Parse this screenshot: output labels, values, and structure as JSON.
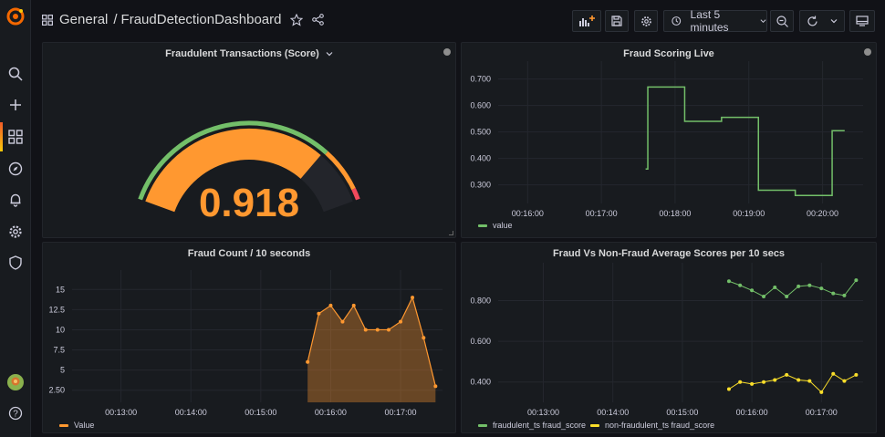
{
  "breadcrumb": {
    "folder": "General",
    "separator": "/",
    "dashboard": "FraudDetectionDashboard"
  },
  "toolbar": {
    "time_range": "Last 5 minutes"
  },
  "colors": {
    "orange": "#ff9830",
    "green": "#73bf69",
    "yellow": "#fade2a",
    "red": "#f2495c"
  },
  "panels": {
    "gauge": {
      "title": "Fraudulent Transactions (Score)",
      "value": "0.918"
    },
    "live": {
      "title": "Fraud Scoring Live",
      "legend": "value"
    },
    "count": {
      "title": "Fraud Count / 10 seconds",
      "legend": "Value"
    },
    "avg": {
      "title": "Fraud Vs Non-Fraud Average Scores per 10 secs",
      "legend_a": "fraudulent_ts fraud_score",
      "legend_b": "non-fraudulent_ts fraud_score"
    }
  },
  "chart_data": [
    {
      "type": "gauge",
      "title": "Fraudulent Transactions (Score)",
      "value": 0.918,
      "min": 0,
      "max": 1,
      "thresholds": [
        {
          "color": "green",
          "from": 0
        },
        {
          "color": "orange",
          "from": 0.8
        },
        {
          "color": "red",
          "from": 0.96
        }
      ]
    },
    {
      "type": "line",
      "title": "Fraud Scoring Live",
      "x_ticks": [
        "00:16:00",
        "00:17:00",
        "00:18:00",
        "00:19:00",
        "00:20:00"
      ],
      "y_ticks": [
        "0.700",
        "0.600",
        "0.500",
        "0.400",
        "0.300"
      ],
      "ylim": [
        0.23,
        0.74
      ],
      "xlim_minutes": [
        15.6,
        20.55
      ],
      "series": [
        {
          "name": "value",
          "x_minutes": [
            17.6,
            17.6,
            17.63,
            17.63,
            18.13,
            18.13,
            18.63,
            18.63,
            19.13,
            19.13,
            19.63,
            19.63,
            20.13,
            20.13,
            20.3
          ],
          "values": [
            0.36,
            0.36,
            0.36,
            0.67,
            0.67,
            0.54,
            0.54,
            0.555,
            0.555,
            0.28,
            0.28,
            0.26,
            0.26,
            0.505,
            0.505
          ]
        }
      ]
    },
    {
      "type": "area",
      "title": "Fraud Count / 10 seconds",
      "x_ticks": [
        "00:13:00",
        "00:14:00",
        "00:15:00",
        "00:16:00",
        "00:17:00"
      ],
      "y_ticks": [
        "15",
        "12.5",
        "10",
        "7.5",
        "5",
        "2.50"
      ],
      "ylim": [
        1,
        16.5
      ],
      "xlim_minutes": [
        12.3,
        17.6
      ],
      "series": [
        {
          "name": "Value",
          "x_minutes": [
            15.67,
            15.83,
            16.0,
            16.17,
            16.33,
            16.5,
            16.67,
            16.83,
            17.0,
            17.17,
            17.33,
            17.5
          ],
          "values": [
            6,
            12,
            13,
            11,
            13,
            10,
            10,
            10,
            11,
            14,
            9,
            3
          ]
        }
      ]
    },
    {
      "type": "line",
      "title": "Fraud Vs Non-Fraud Average Scores per 10 secs",
      "x_ticks": [
        "00:13:00",
        "00:14:00",
        "00:15:00",
        "00:16:00",
        "00:17:00"
      ],
      "y_ticks": [
        "0.800",
        "0.600",
        "0.400"
      ],
      "ylim": [
        0.3,
        0.95
      ],
      "xlim_minutes": [
        12.35,
        17.6
      ],
      "series": [
        {
          "name": "fraudulent_ts fraud_score",
          "x_minutes": [
            15.67,
            15.83,
            16.0,
            16.17,
            16.33,
            16.5,
            16.67,
            16.83,
            17.0,
            17.17,
            17.33,
            17.5
          ],
          "values": [
            0.895,
            0.875,
            0.85,
            0.82,
            0.865,
            0.82,
            0.87,
            0.875,
            0.86,
            0.835,
            0.825,
            0.9
          ]
        },
        {
          "name": "non-fraudulent_ts fraud_score",
          "x_minutes": [
            15.67,
            15.83,
            16.0,
            16.17,
            16.33,
            16.5,
            16.67,
            16.83,
            17.0,
            17.17,
            17.33,
            17.5
          ],
          "values": [
            0.365,
            0.4,
            0.39,
            0.4,
            0.41,
            0.435,
            0.41,
            0.405,
            0.35,
            0.44,
            0.405,
            0.435
          ]
        }
      ]
    }
  ]
}
